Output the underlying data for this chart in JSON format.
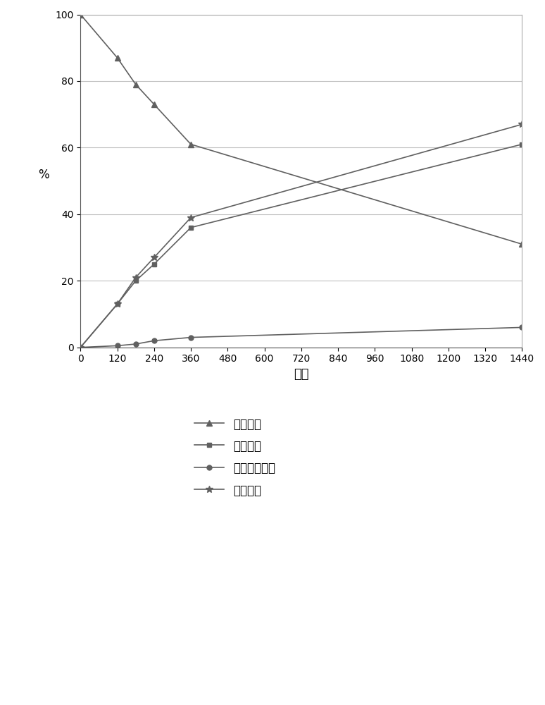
{
  "x": [
    0,
    120,
    180,
    240,
    360,
    1440
  ],
  "line1_y": [
    100,
    87,
    79,
    73,
    61,
    31
  ],
  "line2_y": [
    0,
    13,
    20,
    25,
    36,
    61
  ],
  "line3_y": [
    0,
    0.5,
    1,
    2,
    3,
    6
  ],
  "line4_y": [
    0,
    13,
    21,
    27,
    39,
    67
  ],
  "line1_label": "金合欢烯",
  "line2_label": "目标产物",
  "line3_label": "金合欢基丙酱",
  "line4_label": "全部产物",
  "xlabel": "分钟",
  "ylabel": "%",
  "xlim": [
    0,
    1440
  ],
  "ylim": [
    0,
    100
  ],
  "xticks": [
    0,
    120,
    240,
    360,
    480,
    600,
    720,
    840,
    960,
    1080,
    1200,
    1320,
    1440
  ],
  "yticks": [
    0,
    20,
    40,
    60,
    80,
    100
  ],
  "grid_color": "#c0c0c0",
  "line_color": "#606060",
  "bg_color": "#ffffff"
}
